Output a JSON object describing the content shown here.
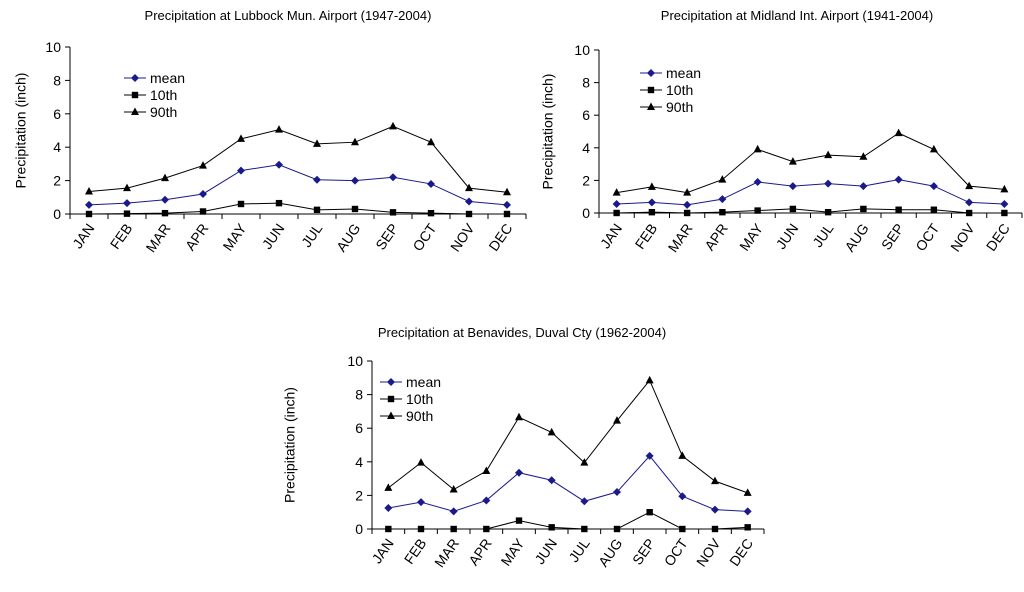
{
  "chart_data": [
    {
      "type": "line",
      "title": "Precipitation at Lubbock Mun. Airport (1947-2004)",
      "ylabel": "Precipitation (inch)",
      "xlabel": "",
      "ylim": [
        0,
        10
      ],
      "yticks": [
        "0",
        "2",
        "4",
        "6",
        "8",
        "10"
      ],
      "categories": [
        "JAN",
        "FEB",
        "MAR",
        "APR",
        "MAY",
        "JUN",
        "JUL",
        "AUG",
        "SEP",
        "OCT",
        "NOV",
        "DEC"
      ],
      "legend_position": "top-left",
      "grid": false,
      "series": [
        {
          "name": "mean",
          "marker": "diamond",
          "color": "#1a1a8c",
          "values": [
            0.55,
            0.65,
            0.85,
            1.2,
            2.6,
            2.95,
            2.05,
            2.0,
            2.2,
            1.8,
            0.75,
            0.55
          ]
        },
        {
          "name": "10th",
          "marker": "square",
          "color": "#000000",
          "values": [
            0.0,
            0.02,
            0.05,
            0.15,
            0.6,
            0.65,
            0.25,
            0.3,
            0.1,
            0.05,
            0.0,
            0.0
          ]
        },
        {
          "name": "90th",
          "marker": "triangle",
          "color": "#000000",
          "values": [
            1.35,
            1.55,
            2.15,
            2.9,
            4.5,
            5.05,
            4.2,
            4.3,
            5.25,
            4.3,
            1.55,
            1.3
          ]
        }
      ]
    },
    {
      "type": "line",
      "title": "Precipitation at Midland Int. Airport (1941-2004)",
      "ylabel": "Precipitation (inch)",
      "xlabel": "",
      "ylim": [
        0,
        10
      ],
      "yticks": [
        "0",
        "2",
        "4",
        "6",
        "8",
        "10"
      ],
      "categories": [
        "JAN",
        "FEB",
        "MAR",
        "APR",
        "MAY",
        "JUN",
        "JUL",
        "AUG",
        "SEP",
        "OCT",
        "NOV",
        "DEC"
      ],
      "legend_position": "top-left",
      "grid": false,
      "series": [
        {
          "name": "mean",
          "marker": "diamond",
          "color": "#1a1a8c",
          "values": [
            0.55,
            0.65,
            0.5,
            0.85,
            1.9,
            1.65,
            1.8,
            1.65,
            2.05,
            1.65,
            0.65,
            0.55
          ]
        },
        {
          "name": "10th",
          "marker": "square",
          "color": "#000000",
          "values": [
            0.0,
            0.05,
            0.0,
            0.05,
            0.15,
            0.25,
            0.05,
            0.25,
            0.2,
            0.2,
            0.0,
            0.0
          ]
        },
        {
          "name": "90th",
          "marker": "triangle",
          "color": "#000000",
          "values": [
            1.25,
            1.6,
            1.25,
            2.05,
            3.9,
            3.15,
            3.55,
            3.45,
            4.9,
            3.9,
            1.65,
            1.45
          ]
        }
      ]
    },
    {
      "type": "line",
      "title": "Precipitation at Benavides, Duval Cty (1962-2004)",
      "ylabel": "Precipitation (inch)",
      "xlabel": "",
      "ylim": [
        0,
        10
      ],
      "yticks": [
        "0",
        "2",
        "4",
        "6",
        "8",
        "10"
      ],
      "categories": [
        "JAN",
        "FEB",
        "MAR",
        "APR",
        "MAY",
        "JUN",
        "JUL",
        "AUG",
        "SEP",
        "OCT",
        "NOV",
        "DEC"
      ],
      "legend_position": "top-left",
      "grid": false,
      "series": [
        {
          "name": "mean",
          "marker": "diamond",
          "color": "#1a1a8c",
          "values": [
            1.25,
            1.6,
            1.05,
            1.7,
            3.35,
            2.9,
            1.65,
            2.2,
            4.35,
            1.95,
            1.15,
            1.05
          ]
        },
        {
          "name": "10th",
          "marker": "square",
          "color": "#000000",
          "values": [
            0.0,
            0.0,
            0.0,
            0.0,
            0.5,
            0.1,
            0.0,
            0.0,
            1.0,
            0.0,
            0.0,
            0.1
          ]
        },
        {
          "name": "90th",
          "marker": "triangle",
          "color": "#000000",
          "values": [
            2.45,
            3.95,
            2.35,
            3.45,
            6.65,
            5.75,
            3.95,
            6.45,
            8.85,
            4.35,
            2.85,
            2.15
          ]
        }
      ]
    }
  ]
}
